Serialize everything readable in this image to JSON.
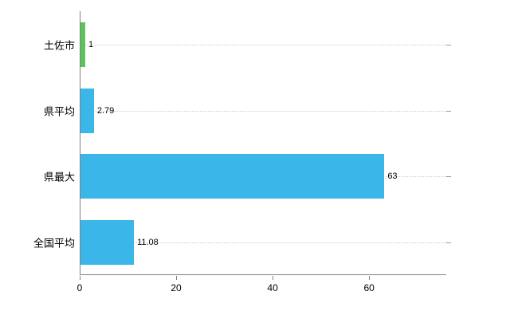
{
  "chart_data": {
    "type": "bar",
    "orientation": "horizontal",
    "title": "",
    "xlabel": "",
    "ylabel": "",
    "categories": [
      "土佐市",
      "県平均",
      "県最大",
      "全国平均"
    ],
    "values": [
      1,
      2.79,
      63,
      11.08
    ],
    "value_labels": [
      "1",
      "2.79",
      "63",
      "11.08"
    ],
    "bar_colors": [
      "#5cc25c",
      "#3ab6e8",
      "#3ab6e8",
      "#3ab6e8"
    ],
    "x_ticks": [
      0,
      20,
      40,
      60
    ],
    "xlim": [
      0,
      76
    ],
    "grid": "horizontal-dotted-per-category",
    "legend": "none",
    "background": "#ffffff"
  },
  "colors": {
    "axis": "#808080",
    "gridline": "#cccccc",
    "text": "#000000",
    "bar_default": "#3ab6e8",
    "bar_highlight": "#5cc25c"
  }
}
